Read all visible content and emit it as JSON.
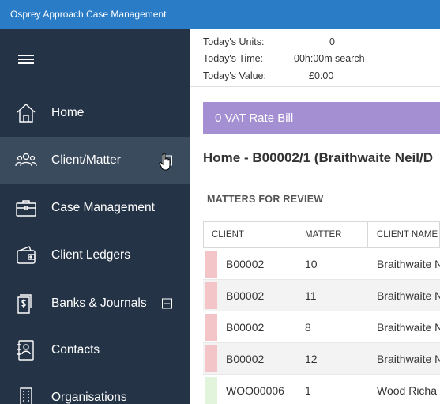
{
  "window": {
    "title": "Osprey Approach Case Management"
  },
  "sidebar": {
    "items": [
      {
        "label": "Home",
        "icon": "home-icon",
        "active": false,
        "expandable": false
      },
      {
        "label": "Client/Matter",
        "icon": "people-icon",
        "active": true,
        "expandable": true
      },
      {
        "label": "Case Management",
        "icon": "briefcase-icon",
        "active": false,
        "expandable": false
      },
      {
        "label": "Client Ledgers",
        "icon": "wallet-icon",
        "active": false,
        "expandable": false
      },
      {
        "label": "Banks & Journals",
        "icon": "dollar-document-icon",
        "active": false,
        "expandable": true
      },
      {
        "label": "Contacts",
        "icon": "contact-card-icon",
        "active": false,
        "expandable": false
      },
      {
        "label": "Organisations",
        "icon": "building-icon",
        "active": false,
        "expandable": false
      }
    ]
  },
  "stats": {
    "units_label": "Today's Units:",
    "units_value": "0",
    "time_label": "Today's Time:",
    "time_value": "00h:00m",
    "time_suffix": "search",
    "value_label": "Today's Value:",
    "value_value": "£0.00"
  },
  "banner": {
    "text": "0 VAT Rate Bill"
  },
  "page_title": "Home - B00002/1 (Braithwaite  Neil/D",
  "section_title": "MATTERS FOR REVIEW",
  "table": {
    "columns": [
      "CLIENT",
      "MATTER",
      "CLIENT NAME"
    ],
    "rows": [
      {
        "client": "B00002",
        "matter": "10",
        "client_name": "Braithwaite N",
        "flag_color": "#f4c5c8"
      },
      {
        "client": "B00002",
        "matter": "11",
        "client_name": "Braithwaite N",
        "flag_color": "#f4c5c8"
      },
      {
        "client": "B00002",
        "matter": "8",
        "client_name": "Braithwaite N",
        "flag_color": "#f4c5c8"
      },
      {
        "client": "B00002",
        "matter": "12",
        "client_name": "Braithwaite N",
        "flag_color": "#f4c5c8"
      },
      {
        "client": "WOO00006",
        "matter": "1",
        "client_name": "Wood Richa",
        "flag_color": "#e2f5dc"
      }
    ]
  },
  "colors": {
    "titlebar": "#2a7cc7",
    "sidebar": "#243446",
    "sidebar_active": "#3b4b5e",
    "banner": "#a48fd3"
  }
}
